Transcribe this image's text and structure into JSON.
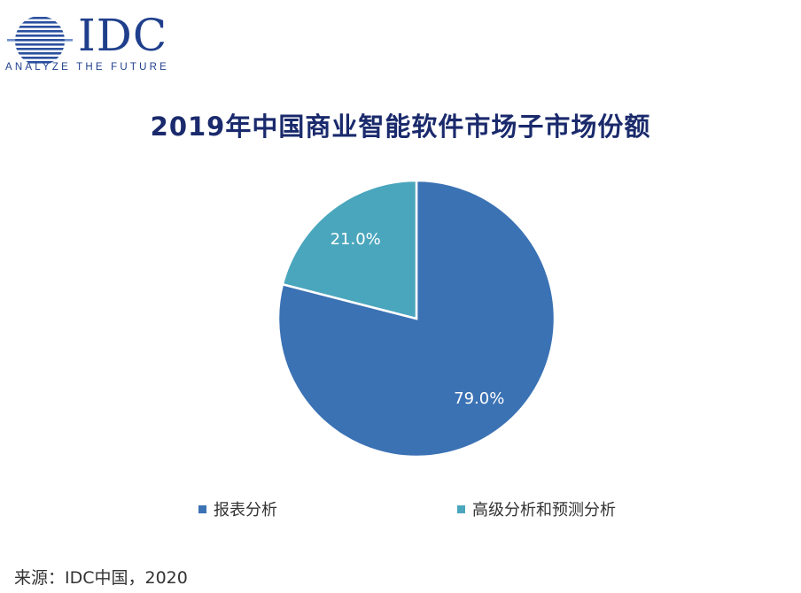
{
  "logo": {
    "wordmark": "IDC",
    "tagline": "ANALYZE THE FUTURE"
  },
  "chart_data": {
    "type": "pie",
    "title": "2019年中国商业智能软件市场子市场份额",
    "categories": [
      "报表分析",
      "高级分析和预测分析"
    ],
    "values": [
      79.0,
      21.0
    ],
    "data_labels": [
      "79.0%",
      "21.0%"
    ],
    "colors": [
      "#3b72b4",
      "#4aa6bd"
    ],
    "legend_position": "bottom"
  },
  "source": "来源：IDC中国，2020"
}
